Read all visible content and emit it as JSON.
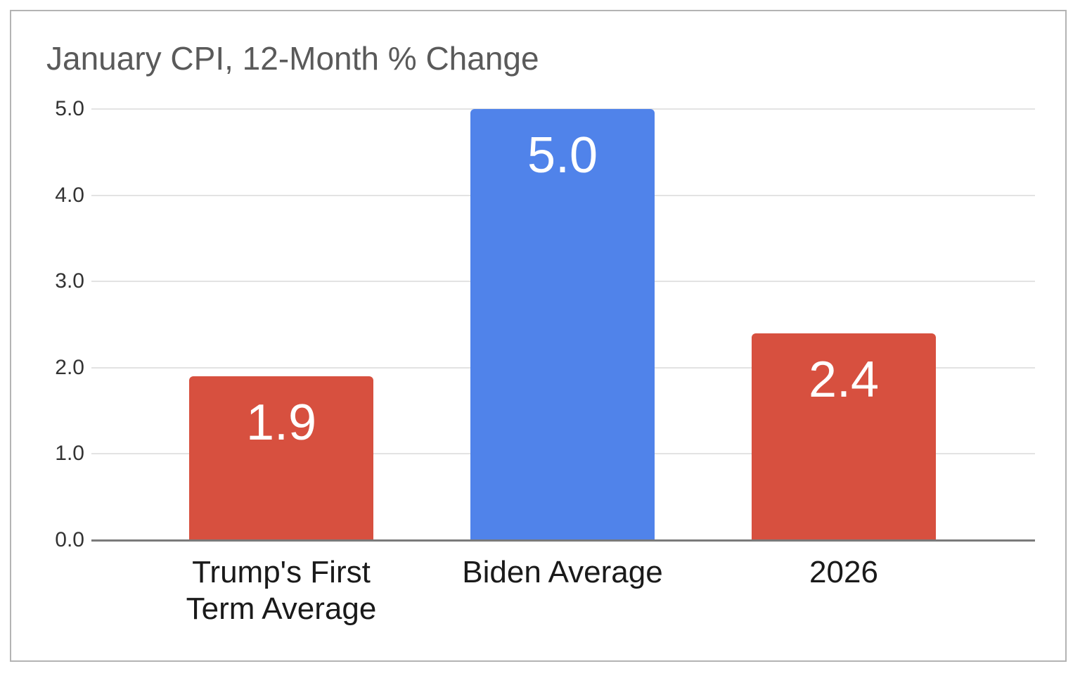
{
  "chart_data": {
    "type": "bar",
    "title": "January CPI, 12-Month % Change",
    "categories": [
      "Trump's First Term Average",
      "Biden Average",
      "2026"
    ],
    "values": [
      1.9,
      5.0,
      2.4
    ],
    "value_labels": [
      "1.9",
      "5.0",
      "2.4"
    ],
    "bar_colors": [
      "#d7503f",
      "#5083ea",
      "#d7503f"
    ],
    "xlabel": "",
    "ylabel": "",
    "ylim": [
      0,
      5
    ],
    "yticks": [
      0,
      1,
      2,
      3,
      4,
      5
    ],
    "ytick_labels": [
      "0.0",
      "1.0",
      "2.0",
      "3.0",
      "4.0",
      "5.0"
    ],
    "grid": true,
    "legend": false,
    "colors": {
      "grid": "#e3e3e3",
      "axis_baseline": "#7a7a7a",
      "frame_border": "#b4b4b4",
      "title_text": "#5a5a5a",
      "ytick_text": "#333333",
      "category_text": "#1a1a1a",
      "value_label_text": "#ffffff",
      "background": "#ffffff"
    }
  }
}
